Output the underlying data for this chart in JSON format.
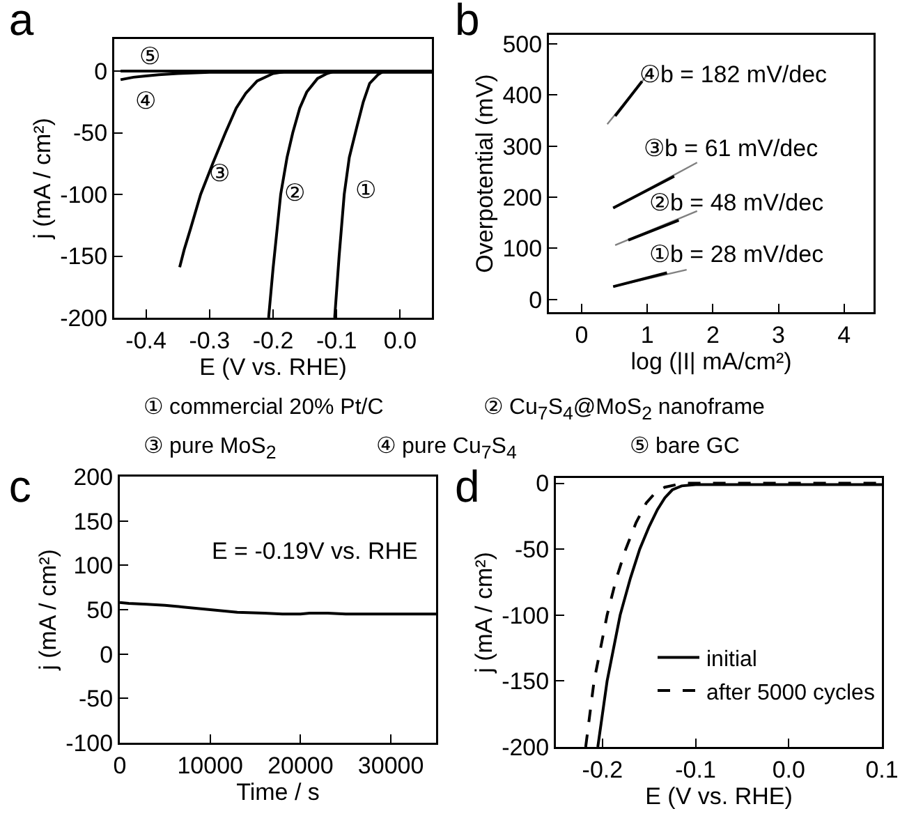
{
  "chart_data": [
    {
      "type": "line",
      "title": "a",
      "xlabel": "E (V vs. RHE)",
      "ylabel": "j (mA / cm²)",
      "xlim": [
        -0.45,
        0.05
      ],
      "xticks": [
        {
          "value": -0.4,
          "label": "-0.4"
        },
        {
          "value": -0.3,
          "label": "-0.3"
        },
        {
          "value": -0.2,
          "label": "-0.2"
        },
        {
          "value": -0.1,
          "label": "-0.1"
        },
        {
          "value": 0,
          "label": "0.0"
        }
      ],
      "ylim": [
        -200,
        26
      ],
      "yticks": [
        -200,
        -150,
        -100,
        -50,
        0
      ],
      "grid": false,
      "legend": false,
      "series": [
        {
          "color": "#000000",
          "x": [
            -0.103,
            -0.096,
            -0.088,
            -0.08,
            -0.068,
            -0.058,
            -0.048,
            -0.035,
            -0.026,
            0.05
          ],
          "values": [
            -200,
            -150,
            -100,
            -70,
            -45,
            -25,
            -10,
            -3,
            0,
            0
          ]
        },
        {
          "color": "#000000",
          "x": [
            -0.207,
            -0.2,
            -0.194,
            -0.188,
            -0.178,
            -0.169,
            -0.158,
            -0.147,
            -0.13,
            -0.115,
            -0.103,
            0.05
          ],
          "values": [
            -200,
            -160,
            -130,
            -100,
            -70,
            -50,
            -30,
            -17,
            -6,
            -2,
            0,
            0
          ]
        },
        {
          "color": "#000000",
          "x": [
            -0.347,
            -0.34,
            -0.33,
            -0.314,
            -0.295,
            -0.275,
            -0.258,
            -0.243,
            -0.225,
            -0.2,
            -0.176,
            0.05
          ],
          "values": [
            -159,
            -145,
            -128,
            -100,
            -75,
            -50,
            -30,
            -18,
            -8,
            -2,
            0,
            0
          ]
        },
        {
          "color": "#000000",
          "x": [
            -0.44,
            -0.42,
            -0.4,
            -0.38,
            -0.35,
            -0.3,
            0.05
          ],
          "values": [
            -7,
            -5,
            -4,
            -3,
            -2,
            -1,
            -1
          ]
        },
        {
          "color": "#000000",
          "x": [
            -0.44,
            0.05
          ],
          "values": [
            0,
            0
          ]
        }
      ],
      "annotations": [
        "⑤",
        "④",
        "③",
        "②",
        "①",
        "① commercial 20% Pt/C",
        "② Cu$_{7}$S$_{4}$@MoS$_{2}$ nanoframe",
        "③ pure MoS$_{2}$",
        "④ pure  Cu$_{7}$S$_{4}$",
        "⑤ bare GC"
      ]
    },
    {
      "type": "line",
      "title": "b",
      "xlabel": "log (|I| mA/cm²)",
      "ylabel": "Overpotential (mV)",
      "xlim": [
        -0.5,
        4.45
      ],
      "xticks": [
        0,
        1,
        2,
        3,
        4
      ],
      "ylim": [
        -25,
        518
      ],
      "yticks": [
        0,
        100,
        200,
        300,
        400,
        500
      ],
      "grid": false,
      "legend": false,
      "series": [
        {
          "color": "#808080",
          "x": [
            0.48,
            1.6
          ],
          "values": [
            25,
            58
          ]
        },
        {
          "color": "#000000",
          "x": [
            0.48,
            1.3
          ],
          "values": [
            25,
            52
          ]
        },
        {
          "color": "#808080",
          "x": [
            0.51,
            1.76
          ],
          "values": [
            106,
            173
          ]
        },
        {
          "color": "#000000",
          "x": [
            0.71,
            1.48
          ],
          "values": [
            116,
            155
          ]
        },
        {
          "color": "#808080",
          "x": [
            0.48,
            1.76
          ],
          "values": [
            179,
            268
          ]
        },
        {
          "color": "#000000",
          "x": [
            0.48,
            1.41
          ],
          "values": [
            179,
            241
          ]
        },
        {
          "color": "#808080",
          "x": [
            0.39,
            0.98
          ],
          "values": [
            343,
            436
          ]
        },
        {
          "color": "#000000",
          "x": [
            0.51,
            0.92
          ],
          "values": [
            359,
            427
          ]
        }
      ],
      "annotations": [
        "④b = 182 mV/dec",
        "③b = 61 mV/dec",
        "②b = 48 mV/dec",
        "①b = 28 mV/dec"
      ]
    },
    {
      "type": "line",
      "title": "c",
      "xlabel": "Time / s",
      "ylabel": "j (mA / cm²)",
      "xlim": [
        0,
        35000
      ],
      "xticks": [
        0,
        10000,
        20000,
        30000
      ],
      "ylim": [
        -100,
        200
      ],
      "yticks": [
        -100,
        -50,
        0,
        50,
        100,
        150,
        200
      ],
      "grid": false,
      "legend": false,
      "series": [
        {
          "color": "#000000",
          "x": [
            0,
            1000,
            3000,
            5000,
            7000,
            10000,
            13000,
            16000,
            18000,
            20000,
            21000,
            23000,
            25000,
            30000,
            35000
          ],
          "values": [
            58,
            57,
            56,
            55,
            53,
            50,
            47,
            46,
            45,
            45,
            46,
            46,
            45,
            45,
            45
          ]
        }
      ],
      "annotations": [
        "E = -0.19V vs. RHE"
      ]
    },
    {
      "type": "line",
      "title": "d",
      "xlabel": "E (V vs. RHE)",
      "ylabel": "j (mA / cm²)",
      "xlim": [
        -0.25,
        0.1
      ],
      "xticks": [
        {
          "value": -0.2,
          "label": "-0.2"
        },
        {
          "value": -0.1,
          "label": "-0.1"
        },
        {
          "value": 0,
          "label": "0.0"
        },
        {
          "value": 0.1,
          "label": "0.1"
        }
      ],
      "ylim": [
        -200,
        4
      ],
      "yticks": [
        -200,
        -150,
        -100,
        -50,
        0
      ],
      "grid": false,
      "legend": "bottom right",
      "series": [
        {
          "name": "initial",
          "color": "#000000",
          "line_style": "solid",
          "x": [
            -0.205,
            -0.195,
            -0.181,
            -0.17,
            -0.16,
            -0.15,
            -0.141,
            -0.133,
            -0.125,
            -0.115,
            -0.1,
            0,
            0.1
          ],
          "values": [
            -200,
            -150,
            -100,
            -72,
            -50,
            -33,
            -20,
            -11,
            -5,
            -2,
            -1,
            -1,
            -1
          ]
        },
        {
          "name": "after 5000 cycles",
          "color": "#000000",
          "line_style": "dashed",
          "x": [
            -0.218,
            -0.209,
            -0.195,
            -0.185,
            -0.175,
            -0.164,
            -0.153,
            -0.143,
            -0.133,
            -0.12,
            -0.11,
            0,
            0.1
          ],
          "values": [
            -200,
            -150,
            -100,
            -72,
            -50,
            -30,
            -15,
            -7,
            -3,
            -1,
            0,
            0,
            0
          ]
        }
      ]
    }
  ]
}
